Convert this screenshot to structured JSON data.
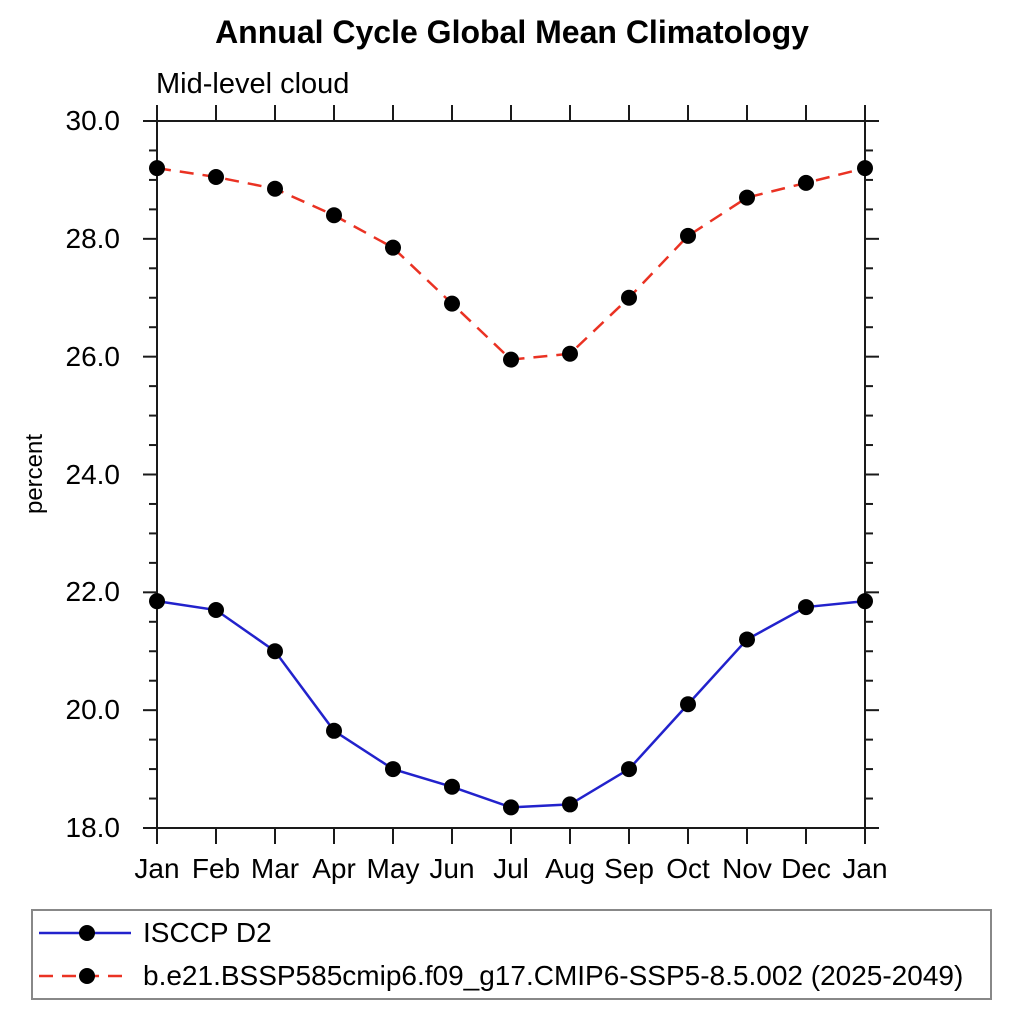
{
  "page": {
    "background": "#ffffff",
    "text_color": "#000000",
    "frame_color": "#1a1a1a"
  },
  "chart_data": {
    "type": "line",
    "title": "Annual Cycle Global Mean Climatology",
    "subtitle": "Mid-level cloud",
    "xlabel": "",
    "ylabel": "percent",
    "x_tick_labels": [
      "Jan",
      "Feb",
      "Mar",
      "Apr",
      "May",
      "Jun",
      "Jul",
      "Aug",
      "Sep",
      "Oct",
      "Nov",
      "Dec",
      "Jan"
    ],
    "ylim": [
      18.0,
      30.0
    ],
    "y_major_tick_step": 2.0,
    "y_minor_tick_step": 0.5,
    "y_tick_labels": [
      "18.0",
      "20.0",
      "22.0",
      "24.0",
      "26.0",
      "28.0",
      "30.0"
    ],
    "grid": false,
    "legend_position": "bottom-left-box",
    "marker": {
      "shape": "filled-circle",
      "color": "#000000",
      "radius": 8
    },
    "series": [
      {
        "name": "ISCCP D2",
        "color": "#2222cc",
        "line_style": "solid",
        "values": [
          21.85,
          21.7,
          21.0,
          19.65,
          19.0,
          18.7,
          18.35,
          18.4,
          19.0,
          20.1,
          21.2,
          21.75,
          21.85
        ]
      },
      {
        "name": "b.e21.BSSP585cmip6.f09_g17.CMIP6-SSP5-8.5.002 (2025-2049)",
        "color": "#ea3223",
        "line_style": "dashed",
        "values": [
          29.2,
          29.05,
          28.85,
          28.4,
          27.85,
          26.9,
          25.95,
          26.05,
          27.0,
          28.05,
          28.7,
          28.95,
          29.2
        ]
      }
    ]
  }
}
